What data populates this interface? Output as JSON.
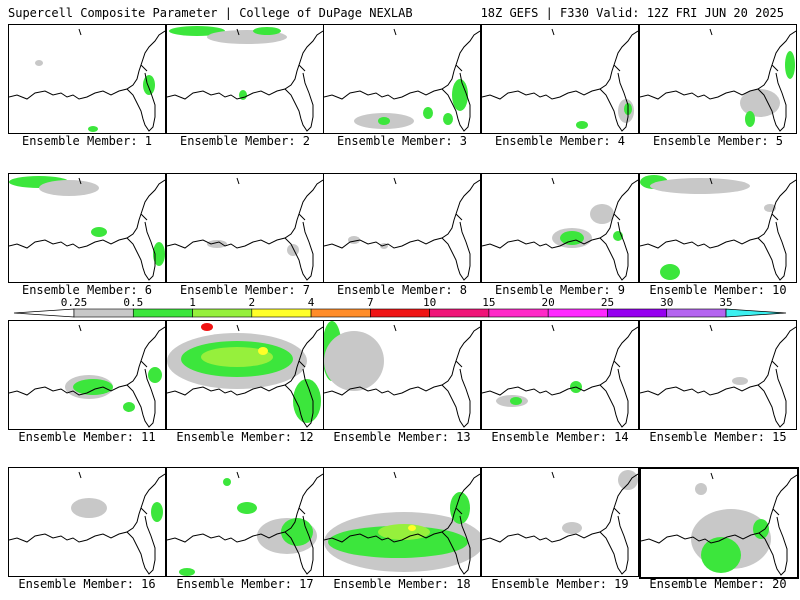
{
  "header": {
    "title_left": "Supercell Composite Parameter | College of DuPage NEXLAB",
    "title_right": "18Z GEFS | F330 Valid: 12Z FRI JUN 20 2025"
  },
  "member_label_prefix": "Ensemble Member: ",
  "members": [
    {
      "id": "1"
    },
    {
      "id": "2"
    },
    {
      "id": "3"
    },
    {
      "id": "4"
    },
    {
      "id": "5"
    },
    {
      "id": "6"
    },
    {
      "id": "7"
    },
    {
      "id": "8"
    },
    {
      "id": "9"
    },
    {
      "id": "10"
    },
    {
      "id": "11"
    },
    {
      "id": "12"
    },
    {
      "id": "13"
    },
    {
      "id": "14"
    },
    {
      "id": "15"
    },
    {
      "id": "16"
    },
    {
      "id": "17"
    },
    {
      "id": "18"
    },
    {
      "id": "19"
    },
    {
      "id": "20"
    }
  ],
  "colorbar": {
    "labels": [
      "0.25",
      "0.5",
      "1",
      "2",
      "4",
      "7",
      "10",
      "15",
      "20",
      "25",
      "30",
      "35"
    ],
    "colors": [
      "#c8c8c8",
      "#3ce63c",
      "#96f03c",
      "#ffff28",
      "#ff8c28",
      "#f01414",
      "#f01478",
      "#ff28c8",
      "#ff28ff",
      "#9600f0",
      "#b464f0",
      "#3cf0f0"
    ],
    "highlight_color": "#000000"
  }
}
